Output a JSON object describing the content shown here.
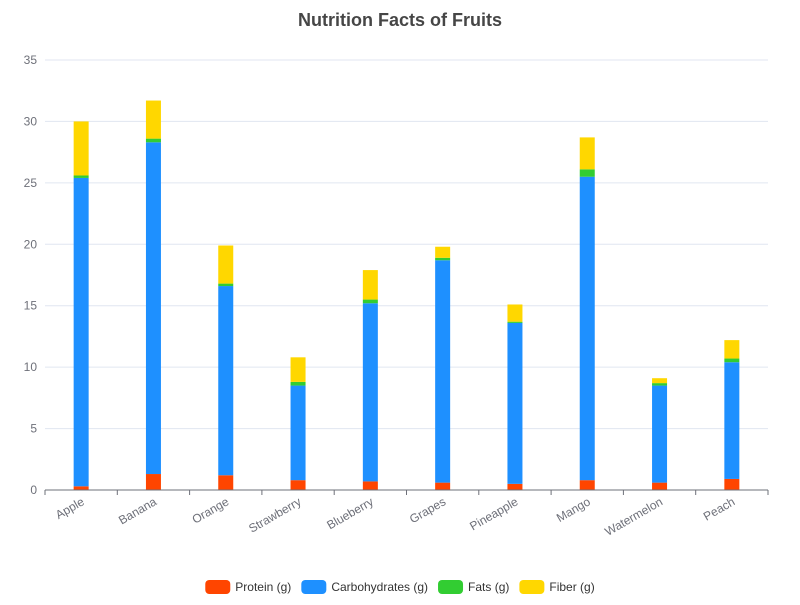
{
  "chart_data": {
    "type": "bar",
    "stacked": true,
    "title": "Nutrition Facts of Fruits",
    "xlabel": "",
    "ylabel": "",
    "categories": [
      "Apple",
      "Banana",
      "Orange",
      "Strawberry",
      "Blueberry",
      "Grapes",
      "Pineapple",
      "Mango",
      "Watermelon",
      "Peach"
    ],
    "series": [
      {
        "name": "Protein (g)",
        "color": "#ff4500",
        "values": [
          0.3,
          1.3,
          1.2,
          0.8,
          0.7,
          0.6,
          0.5,
          0.8,
          0.6,
          0.9
        ]
      },
      {
        "name": "Carbohydrates (g)",
        "color": "#1e90ff",
        "values": [
          25.1,
          27.0,
          15.4,
          7.7,
          14.5,
          18.1,
          13.1,
          24.7,
          7.9,
          9.5
        ]
      },
      {
        "name": "Fats (g)",
        "color": "#32cd32",
        "values": [
          0.2,
          0.3,
          0.2,
          0.3,
          0.3,
          0.2,
          0.1,
          0.6,
          0.2,
          0.3
        ]
      },
      {
        "name": "Fiber (g)",
        "color": "#ffd700",
        "values": [
          4.4,
          3.1,
          3.1,
          2.0,
          2.4,
          0.9,
          1.4,
          2.6,
          0.4,
          1.5
        ]
      }
    ],
    "ylim": [
      0,
      35
    ],
    "yticks": [
      0,
      5,
      10,
      15,
      20,
      25,
      30,
      35
    ],
    "grid": true,
    "legend_position": "bottom-center"
  }
}
